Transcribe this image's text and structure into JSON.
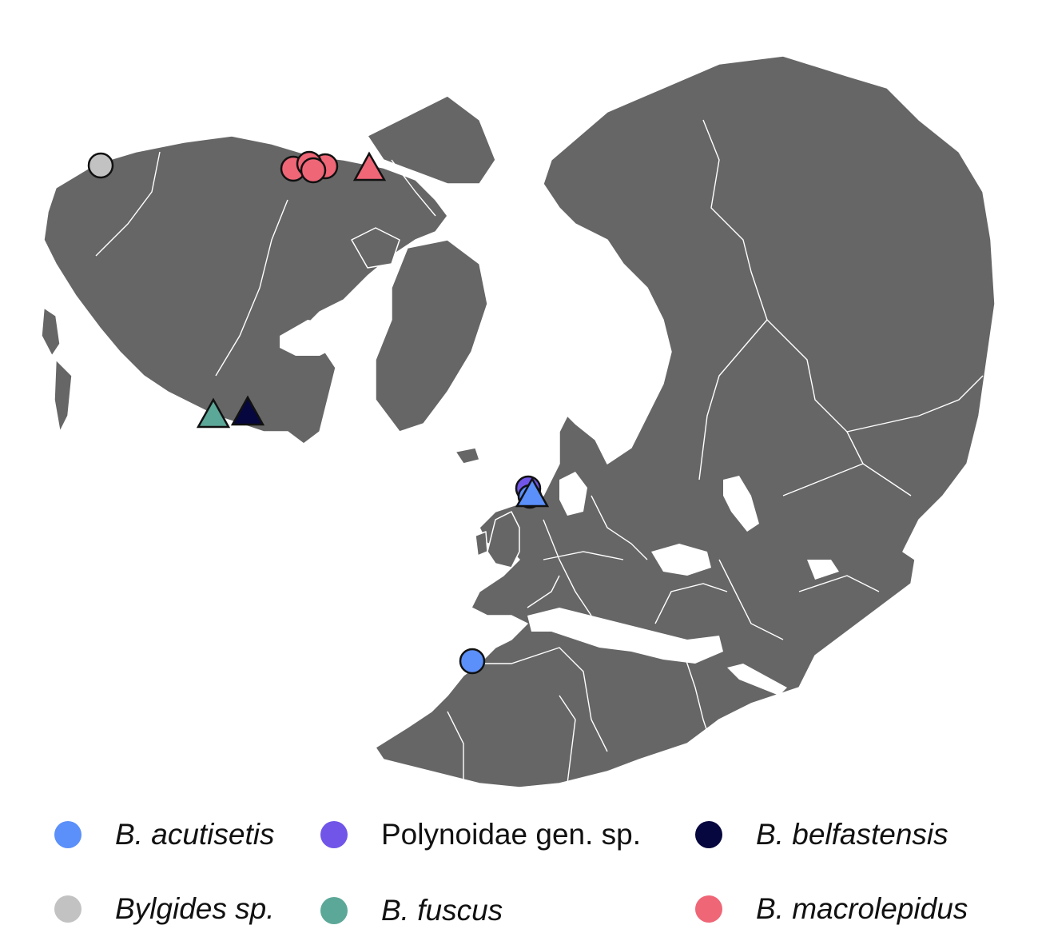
{
  "colors": {
    "land": "#666666",
    "borders": "#ffffff",
    "background": "#ffffff",
    "marker_outline": "#111111"
  },
  "species": [
    {
      "key": "acutisetis",
      "label": "B. acutisetis",
      "italic": true,
      "color": "#5b8ff9"
    },
    {
      "key": "polynoidae",
      "label": "Polynoidae gen. sp.",
      "italic": false,
      "color": "#7055e8"
    },
    {
      "key": "belfastensis",
      "label": "B. belfastensis",
      "italic": true,
      "color": "#07073f"
    },
    {
      "key": "bylgides",
      "label": "Bylgides sp.",
      "italic": true,
      "color": "#c2c2c2"
    },
    {
      "key": "fuscus",
      "label": "B. fuscus",
      "italic": true,
      "color": "#5ca898"
    },
    {
      "key": "macrolepidus",
      "label": "B. macrolepidus",
      "italic": true,
      "color": "#ef6677"
    }
  ],
  "markers_legend": {
    "circle": "circle-marker",
    "triangle": "triangle-marker"
  }
}
